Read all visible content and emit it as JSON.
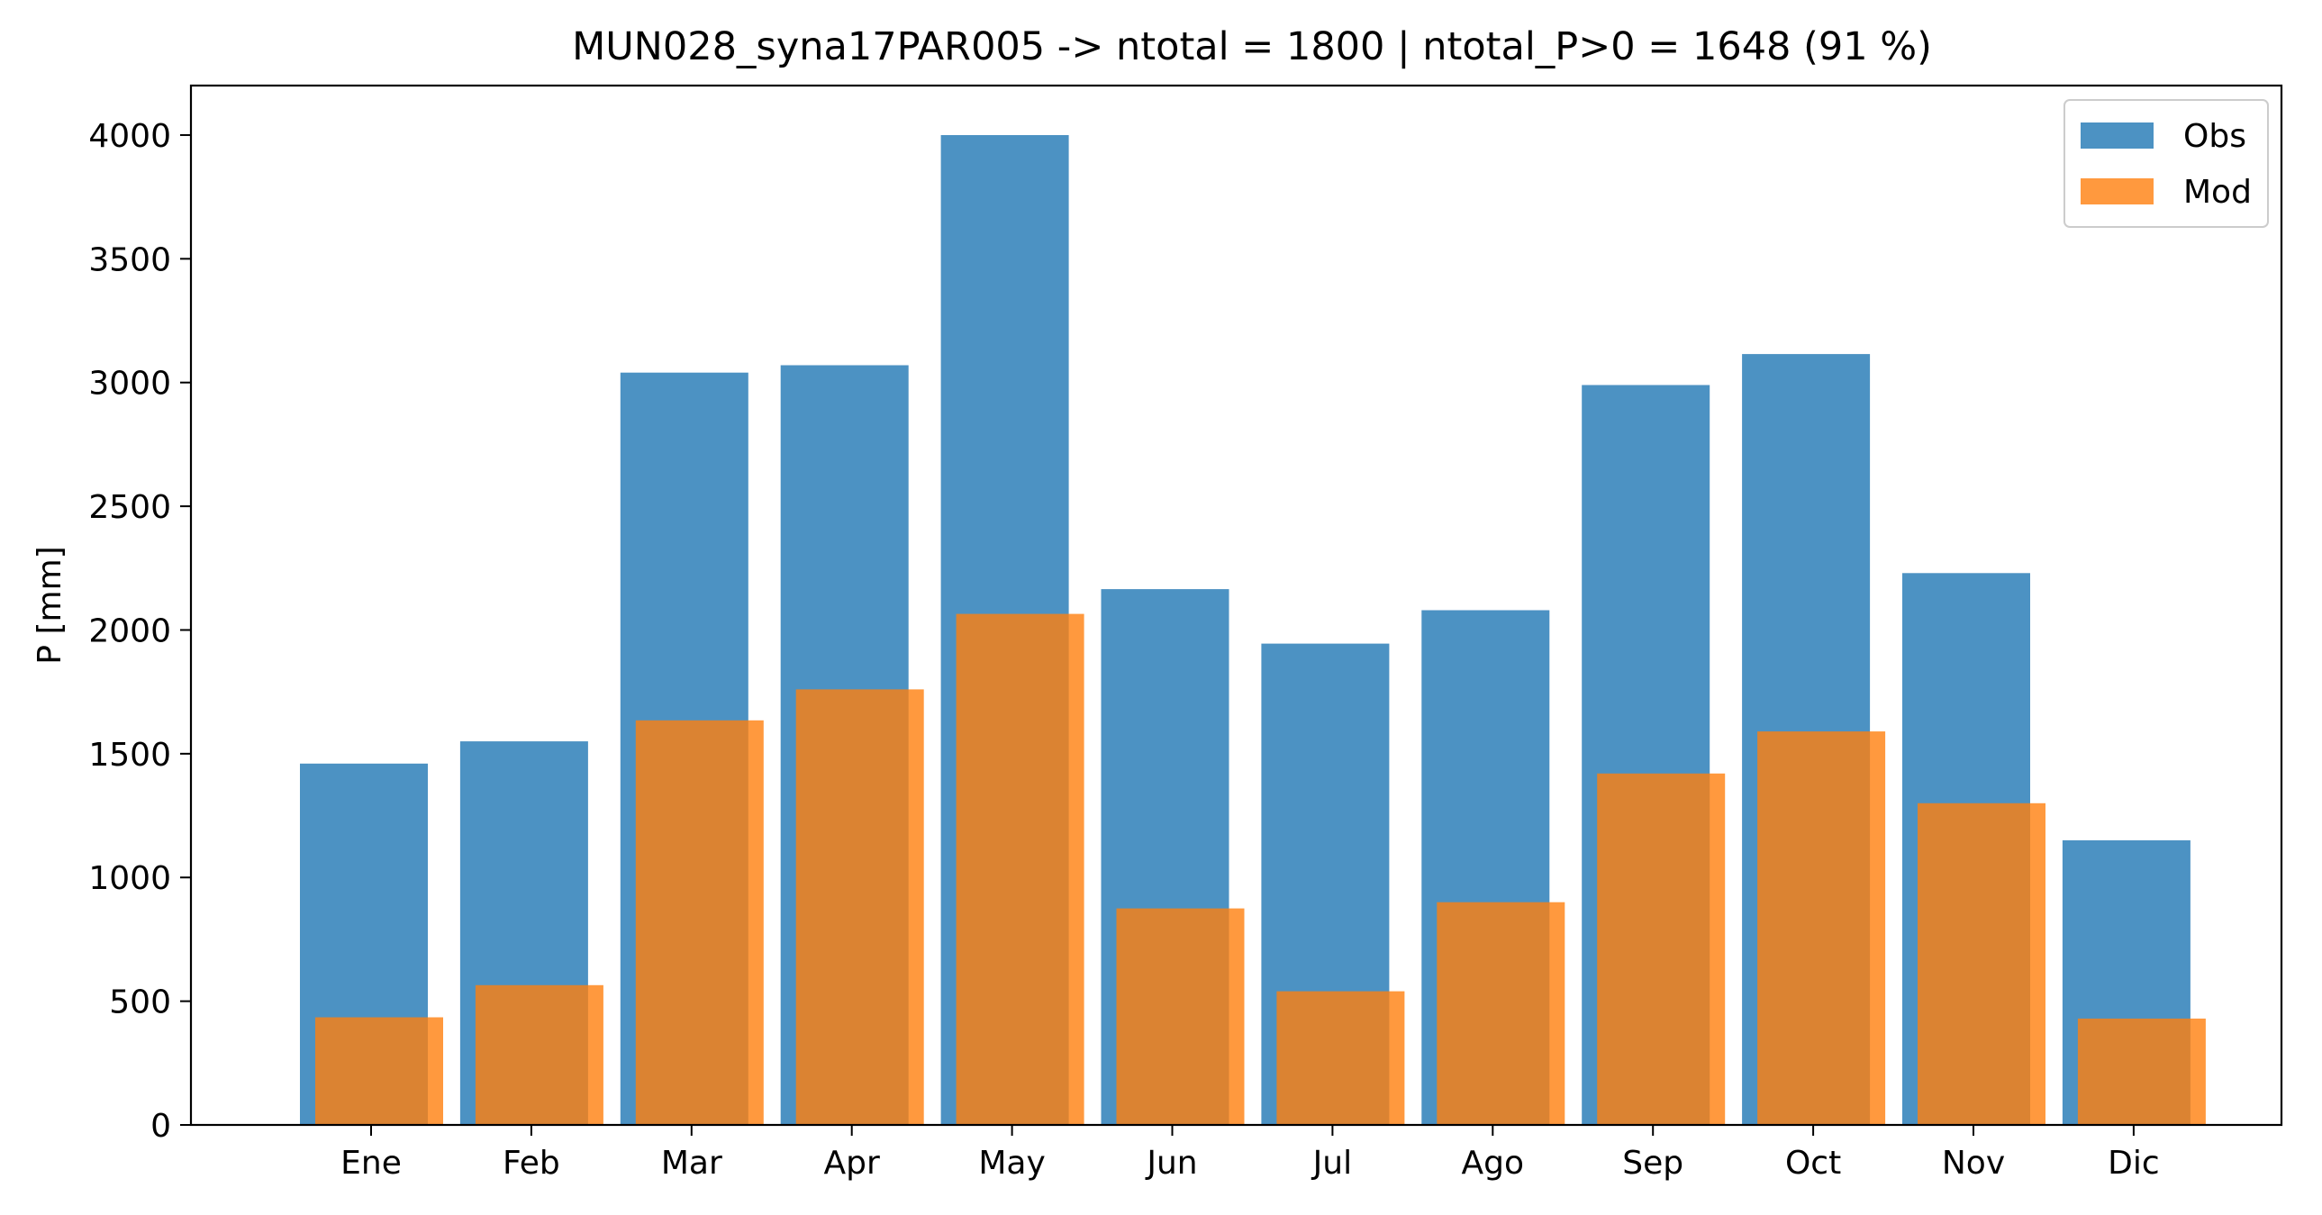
{
  "chart_data": {
    "type": "bar",
    "title": "MUN028_syna17PAR005 -> ntotal = 1800 | ntotal_P>0 = 1648 (91 %)",
    "xlabel": "",
    "ylabel": "P [mm]",
    "categories": [
      "Ene",
      "Feb",
      "Mar",
      "Apr",
      "May",
      "Jun",
      "Jul",
      "Ago",
      "Sep",
      "Oct",
      "Nov",
      "Dic"
    ],
    "series": [
      {
        "name": "Obs",
        "color": "#1f77b4",
        "opacity": 0.8,
        "values": [
          1460,
          1550,
          3040,
          3070,
          4000,
          2165,
          1945,
          2080,
          2990,
          3115,
          2230,
          1150
        ]
      },
      {
        "name": "Mod",
        "color": "#ff7f0e",
        "opacity": 0.8,
        "values": [
          435,
          565,
          1635,
          1760,
          2065,
          875,
          540,
          900,
          1420,
          1590,
          1300,
          430
        ]
      }
    ],
    "ylim": [
      0,
      4200
    ],
    "yticks": [
      0,
      500,
      1000,
      1500,
      2000,
      2500,
      3000,
      3500,
      4000
    ],
    "grid": false,
    "legend_position": "upper right"
  }
}
